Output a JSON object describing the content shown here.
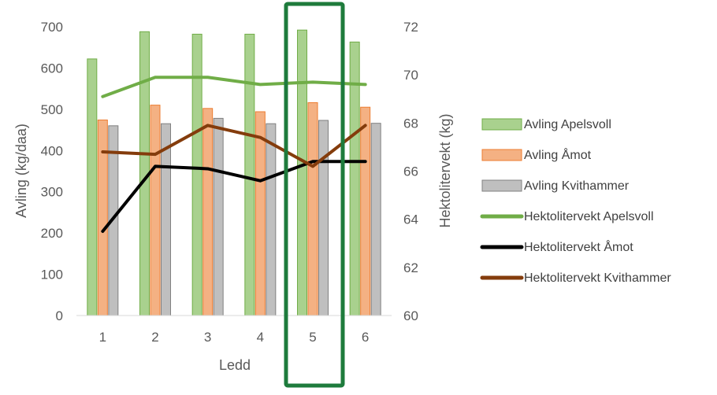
{
  "chart_data": {
    "type": "bar",
    "categories": [
      "1",
      "2",
      "3",
      "4",
      "5",
      "6"
    ],
    "xlabel": "Ledd",
    "ylabel": "Avling (kg/daa)",
    "y2label": "Hektolitervekt (kg)",
    "ylim": [
      0,
      700
    ],
    "y_ticks": [
      "0",
      "100",
      "200",
      "300",
      "400",
      "500",
      "600",
      "700"
    ],
    "y2lim": [
      60,
      72
    ],
    "y2_ticks": [
      "60",
      "62",
      "64",
      "66",
      "68",
      "70",
      "72"
    ],
    "grid": false,
    "legend_position": "right",
    "highlight_category": "5",
    "bar_series": [
      {
        "name": "Avling Apelsvoll",
        "values": [
          622,
          688,
          682,
          682,
          692,
          663
        ],
        "color": "#a9d18e",
        "stroke": "#70ad47"
      },
      {
        "name": "Avling Åmot",
        "values": [
          474,
          510,
          502,
          494,
          516,
          505
        ],
        "color": "#f4b183",
        "stroke": "#ed7d31"
      },
      {
        "name": "Avling Kvithammer",
        "values": [
          460,
          465,
          478,
          465,
          473,
          466
        ],
        "color": "#bfbfbf",
        "stroke": "#808080"
      }
    ],
    "line_series": [
      {
        "name": "Hektolitervekt Apelsvoll",
        "values": [
          69.1,
          69.9,
          69.9,
          69.6,
          69.7,
          69.6
        ],
        "color": "#70ad47"
      },
      {
        "name": "Hektolitervekt Åmot",
        "values": [
          63.5,
          66.2,
          66.1,
          65.6,
          66.4,
          66.4
        ],
        "color": "#000000"
      },
      {
        "name": "Hektolitervekt Kvithammer",
        "values": [
          66.8,
          66.7,
          67.9,
          67.4,
          66.2,
          67.9
        ],
        "color": "#843c0c"
      }
    ],
    "highlight_color": "#1e7b3c"
  }
}
